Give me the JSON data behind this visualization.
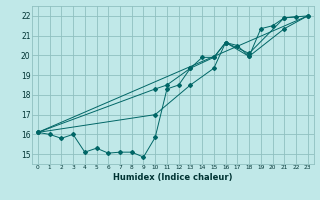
{
  "xlabel": "Humidex (Indice chaleur)",
  "background_color": "#c0e8e8",
  "grid_color": "#90c0c0",
  "line_color": "#006666",
  "xlim": [
    -0.5,
    23.5
  ],
  "ylim": [
    14.5,
    22.5
  ],
  "xtick_vals": [
    0,
    1,
    2,
    3,
    4,
    5,
    6,
    7,
    8,
    9,
    10,
    11,
    12,
    13,
    14,
    15,
    16,
    17,
    18,
    19,
    20,
    21,
    22,
    23
  ],
  "ytick_vals": [
    15,
    16,
    17,
    18,
    19,
    20,
    21,
    22
  ],
  "series0_x": [
    0,
    1,
    2,
    3,
    4,
    5,
    6,
    7,
    8,
    9,
    10,
    11,
    12,
    13,
    14,
    15,
    16,
    17,
    18,
    19,
    20,
    21,
    22
  ],
  "series0_y": [
    16.1,
    16.0,
    15.8,
    16.0,
    15.1,
    15.3,
    15.05,
    15.1,
    15.1,
    14.85,
    15.85,
    18.3,
    18.5,
    19.35,
    19.9,
    19.9,
    20.65,
    20.5,
    19.95,
    21.35,
    21.5,
    21.9,
    21.95
  ],
  "series1_x": [
    0,
    23
  ],
  "series1_y": [
    16.1,
    22.0
  ],
  "series2_x": [
    0,
    10,
    13,
    15,
    16,
    18,
    21,
    23
  ],
  "series2_y": [
    16.1,
    17.0,
    18.5,
    19.35,
    20.65,
    19.95,
    21.35,
    22.0
  ],
  "series3_x": [
    0,
    10,
    11,
    13,
    15,
    16,
    18,
    21,
    23
  ],
  "series3_y": [
    16.1,
    18.3,
    18.5,
    19.35,
    19.9,
    20.65,
    20.1,
    21.9,
    22.0
  ]
}
